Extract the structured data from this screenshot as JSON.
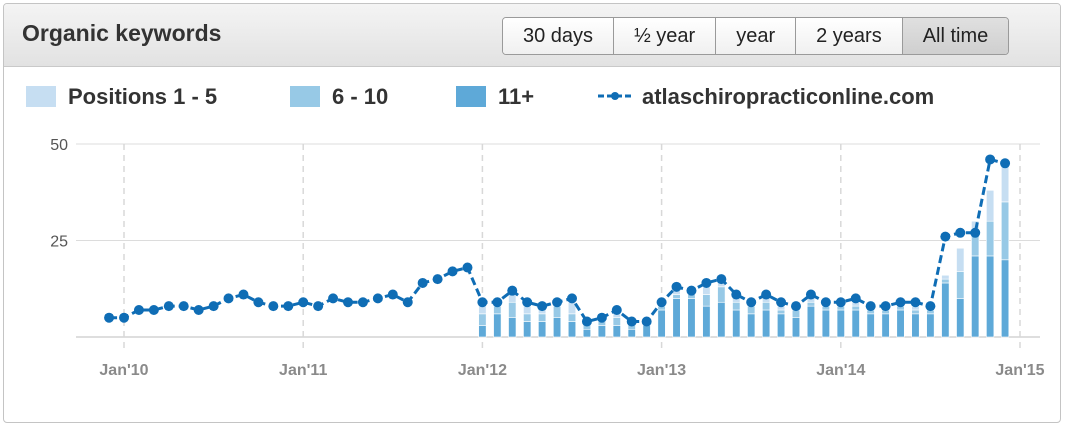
{
  "widget": {
    "title": "Organic keywords",
    "ranges": [
      "30 days",
      "½ year",
      "year",
      "2 years",
      "All time"
    ],
    "active_range": "All time"
  },
  "legend": [
    {
      "label": "Positions 1 - 5",
      "color": "#c6def2"
    },
    {
      "label": "6 - 10",
      "color": "#97c9e6"
    },
    {
      "label": "11+",
      "color": "#5ea9d8"
    },
    {
      "label": "atlaschiropracticonline.com",
      "color": "#0f6db5"
    }
  ],
  "chart_data": {
    "type": "bar",
    "ylim": [
      0,
      50
    ],
    "yticks": [
      25,
      50
    ],
    "xticks": [
      {
        "label": "Jan'10",
        "x": "2010-01"
      },
      {
        "label": "Jan'11",
        "x": "2011-01"
      },
      {
        "label": "Jan'12",
        "x": "2012-01"
      },
      {
        "label": "Jan'13",
        "x": "2013-01"
      },
      {
        "label": "Jan'14",
        "x": "2014-01"
      },
      {
        "label": "Jan'15",
        "x": "2015-01"
      }
    ],
    "grid": true,
    "legend_position": "top",
    "line_series": {
      "name": "atlaschiropracticonline.com",
      "months": [
        "2009-12",
        "2010-01",
        "2010-02",
        "2010-03",
        "2010-04",
        "2010-05",
        "2010-06",
        "2010-07",
        "2010-08",
        "2010-09",
        "2010-10",
        "2010-11",
        "2010-12",
        "2011-01",
        "2011-02",
        "2011-03",
        "2011-04",
        "2011-05",
        "2011-06",
        "2011-07",
        "2011-08",
        "2011-09",
        "2011-10",
        "2011-11",
        "2011-12",
        "2012-01",
        "2012-02",
        "2012-03",
        "2012-04",
        "2012-05",
        "2012-06",
        "2012-07",
        "2012-08",
        "2012-09",
        "2012-10",
        "2012-11",
        "2012-12",
        "2013-01",
        "2013-02",
        "2013-03",
        "2013-04",
        "2013-05",
        "2013-06",
        "2013-07",
        "2013-08",
        "2013-09",
        "2013-10",
        "2013-11",
        "2013-12",
        "2014-01",
        "2014-02",
        "2014-03",
        "2014-04",
        "2014-05",
        "2014-06",
        "2014-07",
        "2014-08",
        "2014-09",
        "2014-10",
        "2014-11",
        "2014-12"
      ],
      "values": [
        5,
        5,
        7,
        7,
        8,
        8,
        7,
        8,
        10,
        11,
        9,
        8,
        8,
        9,
        8,
        10,
        9,
        9,
        10,
        11,
        9,
        14,
        15,
        17,
        18,
        9,
        9,
        12,
        9,
        8,
        9,
        10,
        4,
        5,
        7,
        4,
        4,
        9,
        13,
        12,
        14,
        15,
        11,
        9,
        11,
        9,
        8,
        11,
        9,
        9,
        10,
        8,
        8,
        9,
        9,
        8,
        26,
        27,
        27,
        46,
        45
      ]
    },
    "bar_series": [
      {
        "name": "Positions 1 - 5",
        "months": [
          "2012-01",
          "2012-02",
          "2012-03",
          "2012-04",
          "2012-05",
          "2012-06",
          "2012-07",
          "2012-08",
          "2012-09",
          "2012-10",
          "2012-11",
          "2012-12",
          "2013-01",
          "2013-02",
          "2013-03",
          "2013-04",
          "2013-05",
          "2013-06",
          "2013-07",
          "2013-08",
          "2013-09",
          "2013-10",
          "2013-11",
          "2013-12",
          "2014-01",
          "2014-02",
          "2014-03",
          "2014-04",
          "2014-05",
          "2014-06",
          "2014-07",
          "2014-08",
          "2014-09",
          "2014-10",
          "2014-11",
          "2014-12"
        ],
        "values": [
          3,
          1,
          2,
          2,
          2,
          2,
          3,
          1,
          1,
          1,
          1,
          1,
          1,
          1,
          1,
          2,
          2,
          1,
          1,
          1,
          1,
          1,
          1,
          1,
          1,
          1,
          1,
          1,
          1,
          1,
          1,
          1,
          6,
          2,
          8,
          10
        ]
      },
      {
        "name": "6 - 10",
        "months": [
          "2012-01",
          "2012-02",
          "2012-03",
          "2012-04",
          "2012-05",
          "2012-06",
          "2012-07",
          "2012-08",
          "2012-09",
          "2012-10",
          "2012-11",
          "2012-12",
          "2013-01",
          "2013-02",
          "2013-03",
          "2013-04",
          "2013-05",
          "2013-06",
          "2013-07",
          "2013-08",
          "2013-09",
          "2013-10",
          "2013-11",
          "2013-12",
          "2014-01",
          "2014-02",
          "2014-03",
          "2014-04",
          "2014-05",
          "2014-06",
          "2014-07",
          "2014-08",
          "2014-09",
          "2014-10",
          "2014-11",
          "2014-12"
        ],
        "values": [
          3,
          2,
          4,
          2,
          2,
          3,
          2,
          1,
          1,
          2,
          1,
          1,
          1,
          1,
          1,
          3,
          4,
          2,
          2,
          2,
          1,
          2,
          1,
          1,
          1,
          1,
          1,
          1,
          1,
          1,
          1,
          1,
          7,
          7,
          9,
          15
        ]
      },
      {
        "name": "11+",
        "months": [
          "2012-01",
          "2012-02",
          "2012-03",
          "2012-04",
          "2012-05",
          "2012-06",
          "2012-07",
          "2012-08",
          "2012-09",
          "2012-10",
          "2012-11",
          "2012-12",
          "2013-01",
          "2013-02",
          "2013-03",
          "2013-04",
          "2013-05",
          "2013-06",
          "2013-07",
          "2013-08",
          "2013-09",
          "2013-10",
          "2013-11",
          "2013-12",
          "2014-01",
          "2014-02",
          "2014-03",
          "2014-04",
          "2014-05",
          "2014-06",
          "2014-07",
          "2014-08",
          "2014-09",
          "2014-10",
          "2014-11",
          "2014-12"
        ],
        "values": [
          3,
          6,
          5,
          4,
          4,
          5,
          4,
          2,
          3,
          3,
          2,
          3,
          7,
          10,
          10,
          8,
          9,
          7,
          6,
          7,
          6,
          5,
          8,
          7,
          7,
          7,
          6,
          6,
          7,
          6,
          6,
          14,
          10,
          21,
          21,
          20
        ]
      }
    ]
  }
}
